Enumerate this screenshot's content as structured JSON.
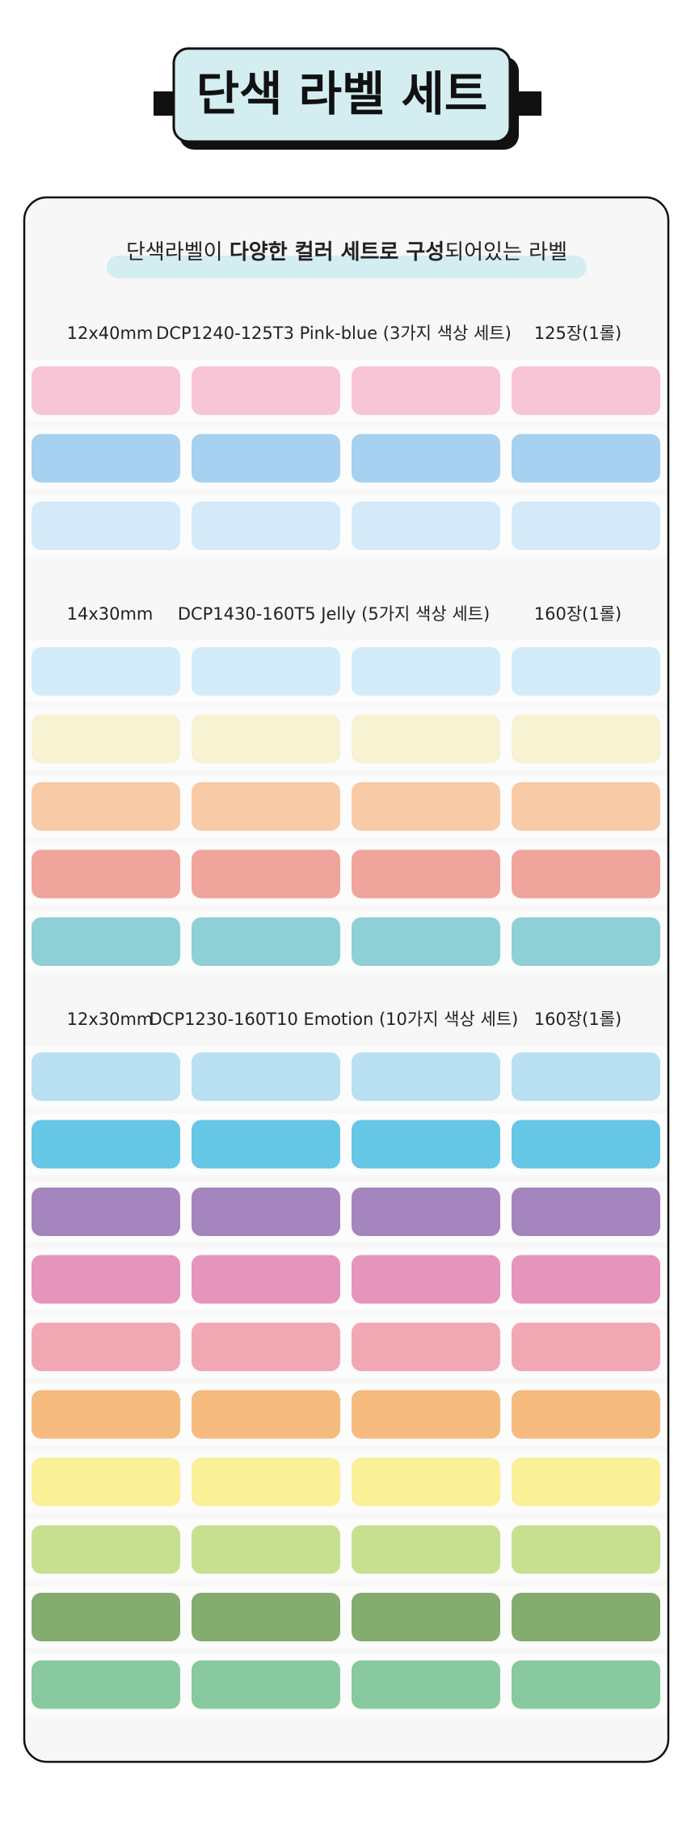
{
  "header": {
    "title": "단색 라벨 세트"
  },
  "subtitle": {
    "parts": [
      {
        "text": "단색라벨이 ",
        "bold": false
      },
      {
        "text": "다양한 컬러 세트로 구성",
        "bold": true
      },
      {
        "text": "되어있는 라벨",
        "bold": false
      }
    ]
  },
  "sections": [
    {
      "size": "12x40mm",
      "name": "DCP1240-125T3 Pink-blue (3가지 색상 세트)",
      "quantity": "125장(1롤)",
      "colors": [
        "#f7c5d6",
        "#a6d1f0",
        "#d4eaf8"
      ]
    },
    {
      "size": "14x30mm",
      "name": "DCP1430-160T5 Jelly (5가지 색상 세트)",
      "quantity": "160장(1롤)",
      "colors": [
        "#d4ebf9",
        "#f6f2d2",
        "#f8caa6",
        "#efa49c",
        "#8ed0d5"
      ]
    },
    {
      "size": "12x30mm",
      "name": "DCP1230-160T10 Emotion (10가지 색상 세트)",
      "quantity": "160장(1롤)",
      "colors": [
        "#b8e0f2",
        "#66c6e6",
        "#a585bd",
        "#e594bc",
        "#f2a8b3",
        "#f6bb7e",
        "#f9f097",
        "#c6df90",
        "#84ac6f",
        "#88c99f"
      ]
    }
  ]
}
